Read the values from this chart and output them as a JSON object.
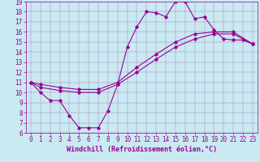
{
  "xlabel": "Windchill (Refroidissement éolien,°C)",
  "bg_color": "#c8eaf0",
  "line_color": "#990099",
  "xlim": [
    -0.5,
    23.5
  ],
  "ylim": [
    6,
    19
  ],
  "xticks": [
    0,
    1,
    2,
    3,
    4,
    5,
    6,
    7,
    8,
    9,
    10,
    11,
    12,
    13,
    14,
    15,
    16,
    17,
    18,
    19,
    20,
    21,
    22,
    23
  ],
  "yticks": [
    6,
    7,
    8,
    9,
    10,
    11,
    12,
    13,
    14,
    15,
    16,
    17,
    18,
    19
  ],
  "curve1_x": [
    0,
    1,
    2,
    3,
    4,
    5,
    6,
    7,
    8,
    9,
    10,
    11,
    12,
    13,
    14,
    15,
    16,
    17,
    18,
    19,
    20,
    21,
    22,
    23
  ],
  "curve1_y": [
    11,
    10,
    9.2,
    9.2,
    7.7,
    6.5,
    6.5,
    6.5,
    8.2,
    10.8,
    14.5,
    16.5,
    18.0,
    17.9,
    17.5,
    19.0,
    19.0,
    17.3,
    17.5,
    16.2,
    15.3,
    15.2,
    15.2,
    14.8
  ],
  "curve2_x": [
    0,
    1,
    3,
    5,
    7,
    9,
    11,
    13,
    15,
    17,
    19,
    21,
    23
  ],
  "curve2_y": [
    11,
    10.5,
    10.2,
    10.0,
    10.0,
    10.8,
    12.0,
    13.3,
    14.5,
    15.3,
    15.8,
    15.8,
    14.8
  ],
  "curve3_x": [
    0,
    1,
    3,
    5,
    7,
    9,
    11,
    13,
    15,
    17,
    19,
    21,
    23
  ],
  "curve3_y": [
    11,
    10.8,
    10.5,
    10.3,
    10.3,
    11.0,
    12.5,
    13.8,
    15.0,
    15.8,
    16.0,
    16.0,
    14.8
  ],
  "marker": "D",
  "markersize": 1.8,
  "linewidth": 0.8,
  "fontsize_tick": 5.5,
  "fontsize_xlabel": 6.0
}
